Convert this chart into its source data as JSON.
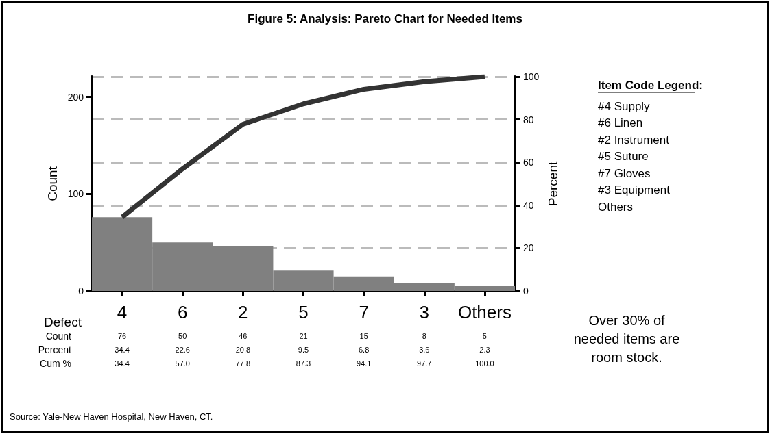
{
  "chart_data": {
    "type": "bar",
    "title": "Figure 5: Analysis: Pareto Chart for Needed Items",
    "xlabel": "Defect",
    "ylabel": "Count",
    "y2label": "Percent",
    "categories": [
      "4",
      "6",
      "2",
      "5",
      "7",
      "3",
      "Others"
    ],
    "series": [
      {
        "color": "#808080",
        "values": [
          76,
          50,
          46,
          21,
          15,
          8,
          5
        ],
        "value_labels": [
          "76",
          "50",
          "46",
          "21",
          "15",
          "8",
          "5"
        ]
      },
      {
        "type": "line",
        "axis": "y2",
        "color": "#333333",
        "values": [
          34.4,
          57.0,
          77.8,
          87.3,
          94.1,
          97.7,
          100.0
        ],
        "value_labels": [
          "34.4",
          "57.0",
          "77.8",
          "87.3",
          "94.1",
          "97.7",
          "100.0"
        ]
      }
    ],
    "ylim": [
      0,
      221
    ],
    "yticks": [
      0,
      100,
      200
    ],
    "y2lim": [
      0,
      100
    ],
    "y2ticks": [
      0,
      20,
      40,
      60,
      80,
      100
    ],
    "grid": "y",
    "marker": "none",
    "line_style": "solid",
    "annotations": [
      "Item Code Legend:",
      "#4 Supply",
      "#6 Linen",
      "#2 Instrument",
      "#5 Suture",
      "#7 Gloves",
      "#3 Equipment",
      "Others",
      "Over 30% of\nneeded items are\nroom stock.",
      "Source: Yale-New Haven Hospital, New Haven, CT.",
      "Percent",
      "34.4",
      "22.6",
      "20.8",
      "9.5",
      "6.8",
      "3.6",
      "2.3",
      "Count",
      "Cum %"
    ]
  }
}
